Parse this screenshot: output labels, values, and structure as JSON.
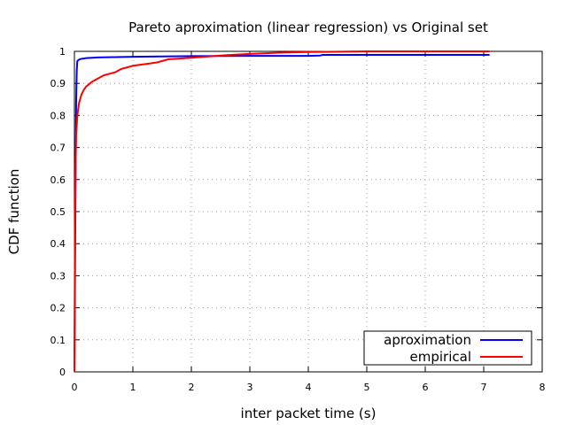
{
  "chart_data": {
    "type": "line",
    "title": "Pareto aproximation (linear regression) vs Original set",
    "xlabel": "inter packet time (s)",
    "ylabel": "CDF function",
    "xlim": [
      0,
      8
    ],
    "ylim": [
      0,
      1
    ],
    "xticks": [
      "0",
      "1",
      "2",
      "3",
      "4",
      "5",
      "6",
      "7",
      "8"
    ],
    "yticks": [
      "0",
      "0.1",
      "0.2",
      "0.3",
      "0.4",
      "0.5",
      "0.6",
      "0.7",
      "0.8",
      "0.9",
      "1"
    ],
    "grid": true,
    "legend_position": "bottom-right",
    "series": [
      {
        "name": "aproximation",
        "color": "#0000ff",
        "x": [
          0,
          0.01,
          0.02,
          0.03,
          0.04,
          0.05,
          0.07,
          0.1,
          0.2,
          0.4,
          0.7,
          1,
          2,
          3,
          4,
          4.2,
          4.25,
          5,
          6,
          7,
          7.1
        ],
        "y": [
          0,
          0.3,
          0.6,
          0.85,
          0.94,
          0.97,
          0.973,
          0.976,
          0.979,
          0.981,
          0.982,
          0.983,
          0.985,
          0.986,
          0.986,
          0.987,
          0.989,
          0.989,
          0.989,
          0.989,
          0.989
        ]
      },
      {
        "name": "empirical",
        "color": "#ff0000",
        "x": [
          0,
          0.01,
          0.02,
          0.03,
          0.05,
          0.08,
          0.12,
          0.16,
          0.2,
          0.3,
          0.4,
          0.5,
          0.6,
          0.7,
          0.8,
          0.9,
          1.0,
          1.2,
          1.4,
          1.5,
          1.6,
          2.0,
          2.5,
          3.0,
          3.5,
          4.0,
          4.5,
          5.0,
          6.0,
          7.0,
          7.1
        ],
        "y": [
          0,
          0.45,
          0.65,
          0.74,
          0.8,
          0.84,
          0.865,
          0.88,
          0.89,
          0.905,
          0.915,
          0.925,
          0.93,
          0.935,
          0.945,
          0.95,
          0.955,
          0.96,
          0.965,
          0.97,
          0.975,
          0.98,
          0.987,
          0.992,
          0.996,
          0.998,
          0.999,
          1.0,
          1.0,
          1.0,
          1.0
        ]
      }
    ]
  }
}
